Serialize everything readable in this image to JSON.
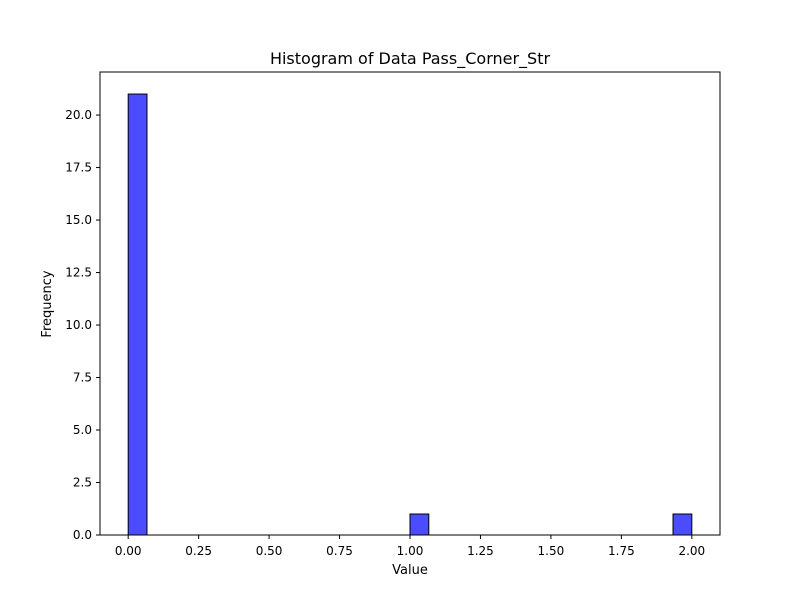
{
  "chart_data": {
    "type": "bar",
    "title": "Histogram of Data Pass_Corner_Str",
    "xlabel": "Value",
    "ylabel": "Frequency",
    "bins": [
      {
        "start": 0.0,
        "end": 0.0667,
        "count": 21
      },
      {
        "start": 0.0667,
        "end": 0.1333,
        "count": 0
      },
      {
        "start": 0.1333,
        "end": 0.2,
        "count": 0
      },
      {
        "start": 0.2,
        "end": 0.2667,
        "count": 0
      },
      {
        "start": 0.2667,
        "end": 0.3333,
        "count": 0
      },
      {
        "start": 0.3333,
        "end": 0.4,
        "count": 0
      },
      {
        "start": 0.4,
        "end": 0.4667,
        "count": 0
      },
      {
        "start": 0.4667,
        "end": 0.5333,
        "count": 0
      },
      {
        "start": 0.5333,
        "end": 0.6,
        "count": 0
      },
      {
        "start": 0.6,
        "end": 0.6667,
        "count": 0
      },
      {
        "start": 0.6667,
        "end": 0.7333,
        "count": 0
      },
      {
        "start": 0.7333,
        "end": 0.8,
        "count": 0
      },
      {
        "start": 0.8,
        "end": 0.8667,
        "count": 0
      },
      {
        "start": 0.8667,
        "end": 0.9333,
        "count": 0
      },
      {
        "start": 0.9333,
        "end": 1.0,
        "count": 0
      },
      {
        "start": 1.0,
        "end": 1.0667,
        "count": 1
      },
      {
        "start": 1.0667,
        "end": 1.1333,
        "count": 0
      },
      {
        "start": 1.1333,
        "end": 1.2,
        "count": 0
      },
      {
        "start": 1.2,
        "end": 1.2667,
        "count": 0
      },
      {
        "start": 1.2667,
        "end": 1.3333,
        "count": 0
      },
      {
        "start": 1.3333,
        "end": 1.4,
        "count": 0
      },
      {
        "start": 1.4,
        "end": 1.4667,
        "count": 0
      },
      {
        "start": 1.4667,
        "end": 1.5333,
        "count": 0
      },
      {
        "start": 1.5333,
        "end": 1.6,
        "count": 0
      },
      {
        "start": 1.6,
        "end": 1.6667,
        "count": 0
      },
      {
        "start": 1.6667,
        "end": 1.7333,
        "count": 0
      },
      {
        "start": 1.7333,
        "end": 1.8,
        "count": 0
      },
      {
        "start": 1.8,
        "end": 1.8667,
        "count": 0
      },
      {
        "start": 1.8667,
        "end": 1.9333,
        "count": 0
      },
      {
        "start": 1.9333,
        "end": 2.0,
        "count": 1
      }
    ],
    "xlim": [
      -0.1,
      2.1
    ],
    "ylim": [
      0,
      22.05
    ],
    "xticks": [
      "0.00",
      "0.25",
      "0.50",
      "0.75",
      "1.00",
      "1.25",
      "1.50",
      "1.75",
      "2.00"
    ],
    "yticks": [
      "0.0",
      "2.5",
      "5.0",
      "7.5",
      "10.0",
      "12.5",
      "15.0",
      "17.5",
      "20.0"
    ],
    "grid": false,
    "colors": {
      "bar_fill": "#0000ff",
      "bar_fill_opacity": 0.7,
      "bar_edge": "#000000",
      "axis": "#000000",
      "background": "#ffffff"
    }
  }
}
